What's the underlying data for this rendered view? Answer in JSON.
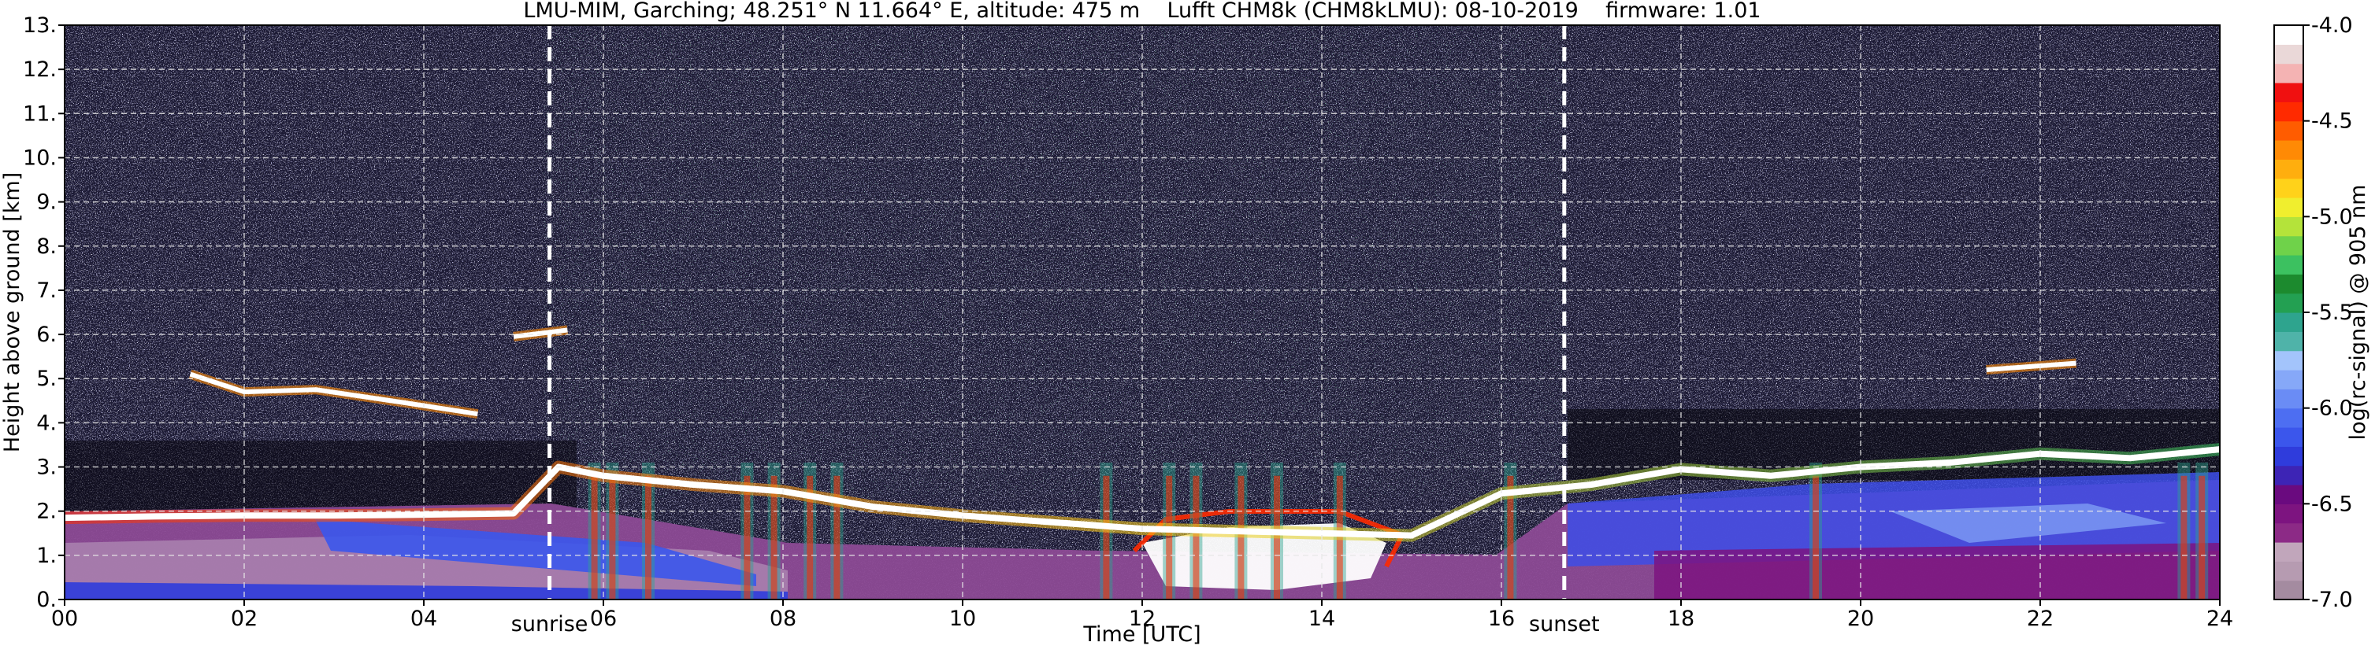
{
  "chart_data": {
    "type": "heatmap",
    "title": "LMU-MIM, Garching; 48.251° N 11.664° E, altitude: 475 m    Lufft CHM8k (CHM8kLMU): 08-10-2019    firmware: 1.01",
    "xlabel": "Time [UTC]",
    "ylabel": "Height above ground [km]",
    "colorbar_label": "log(rc-signal) @ 905 nm",
    "xlim": [
      0,
      24
    ],
    "ylim": [
      0,
      13
    ],
    "x_tick_labels": [
      "00",
      "02",
      "04",
      "06",
      "08",
      "10",
      "12",
      "14",
      "16",
      "18",
      "20",
      "22",
      "24"
    ],
    "y_tick_labels": [
      "0.",
      "1.",
      "2.",
      "3.",
      "4.",
      "5.",
      "6.",
      "7.",
      "8.",
      "9.",
      "10.",
      "11.",
      "12.",
      "13."
    ],
    "colorbar_range": [
      -7.0,
      -4.0
    ],
    "colorbar_tick_labels": [
      "-7.0",
      "-6.5",
      "-6.0",
      "-5.5",
      "-5.0",
      "-4.5",
      "-4.0"
    ],
    "colorbar_colors": [
      "#a48ba0",
      "#b69bb1",
      "#c1a6bb",
      "#8c2a86",
      "#7d1480",
      "#6a0a7f",
      "#3d24b5",
      "#2f3cdc",
      "#3b56ec",
      "#4d6ef2",
      "#6a8cf5",
      "#86a8f8",
      "#a3c4fb",
      "#4fb3a9",
      "#2ea48e",
      "#23a052",
      "#1c8a2e",
      "#3cc160",
      "#6fd24a",
      "#b4e33a",
      "#f0ee2e",
      "#ffd21a",
      "#ffae0e",
      "#ff8a05",
      "#ff5c00",
      "#ff2a00",
      "#f01010",
      "#f4b3b3",
      "#ead8d8",
      "#ffffff"
    ],
    "grid": true,
    "sunrise_hour": 5.4,
    "sunset_hour": 16.7,
    "sunrise_label": "sunrise",
    "sunset_label": "sunset",
    "cloud_base_track": {
      "hours": [
        0,
        1,
        2,
        3,
        4,
        5,
        5.5,
        6,
        7,
        8,
        9,
        10,
        11,
        12,
        13,
        14,
        15,
        16,
        17,
        18,
        19,
        20,
        21,
        22,
        23,
        24
      ],
      "heights_km": [
        1.85,
        1.88,
        1.9,
        1.9,
        1.92,
        1.95,
        3.0,
        2.8,
        2.6,
        2.45,
        2.1,
        1.9,
        1.75,
        1.6,
        1.55,
        1.5,
        1.45,
        2.4,
        2.6,
        2.95,
        2.8,
        3.0,
        3.1,
        3.3,
        3.2,
        3.4
      ]
    },
    "elevated_layers": [
      {
        "hours": [
          1.4,
          2.0,
          2.8,
          3.8,
          4.6
        ],
        "heights_km": [
          5.1,
          4.7,
          4.75,
          4.45,
          4.2
        ]
      },
      {
        "hours": [
          5.0,
          5.6
        ],
        "heights_km": [
          5.95,
          6.1
        ]
      },
      {
        "hours": [
          21.4,
          22.4
        ],
        "heights_km": [
          5.2,
          5.35
        ]
      }
    ]
  }
}
